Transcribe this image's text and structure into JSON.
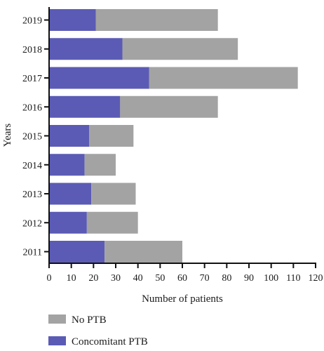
{
  "chart_data": {
    "type": "bar",
    "orientation": "horizontal",
    "stacked": true,
    "categories": [
      "2019",
      "2018",
      "2017",
      "2016",
      "2015",
      "2014",
      "2013",
      "2012",
      "2011"
    ],
    "series": [
      {
        "name": "Concomitant PTB",
        "color": "#5b5bb5",
        "values": [
          21,
          33,
          45,
          32,
          18,
          16,
          19,
          17,
          25
        ]
      },
      {
        "name": "No PTB",
        "color": "#a3a3a3",
        "values": [
          55,
          52,
          67,
          44,
          20,
          14,
          20,
          23,
          35
        ]
      }
    ],
    "xlabel": "Number of patients",
    "ylabel": "Years",
    "xlim": [
      0,
      120
    ],
    "xticks": [
      "0",
      "10",
      "20",
      "30",
      "40",
      "50",
      "60",
      "70",
      "80",
      "90",
      "100",
      "110",
      "120"
    ],
    "grid": false,
    "legend": {
      "placement": "bottom-left",
      "entries": [
        {
          "label": "No PTB",
          "color": "#a3a3a3"
        },
        {
          "label": "Concomitant PTB",
          "color": "#5b5bb5"
        }
      ]
    }
  }
}
